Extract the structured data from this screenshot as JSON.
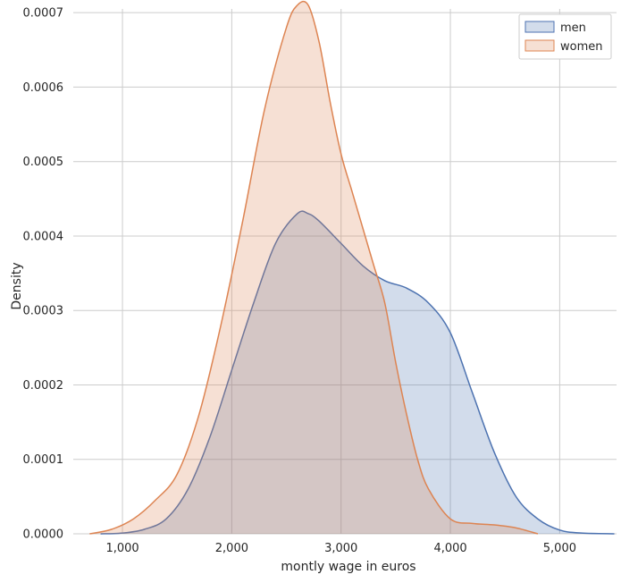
{
  "chart_data": {
    "type": "area",
    "xlabel": "montly wage in euros",
    "ylabel": "Density",
    "xlim": [
      550,
      5520
    ],
    "ylim": [
      0,
      0.000705
    ],
    "grid": true,
    "legend_position": "top-right",
    "x_ticks": [
      1000,
      2000,
      3000,
      4000,
      5000
    ],
    "x_tick_labels": [
      "1,000",
      "2,000",
      "3,000",
      "4,000",
      "5,000"
    ],
    "y_ticks": [
      0.0,
      0.0001,
      0.0002,
      0.0003,
      0.0004,
      0.0005,
      0.0006,
      0.0007
    ],
    "y_tick_labels": [
      "0.0000",
      "0.0001",
      "0.0002",
      "0.0003",
      "0.0004",
      "0.0005",
      "0.0006",
      "0.0007"
    ],
    "series": [
      {
        "name": "men",
        "line_color": "#4c72b0",
        "fill_color": "#4c72b0",
        "fill_opacity": 0.25,
        "x": [
          800,
          1000,
          1200,
          1400,
          1600,
          1800,
          2000,
          2200,
          2400,
          2600,
          2700,
          2800,
          3000,
          3200,
          3400,
          3600,
          3800,
          4000,
          4200,
          4400,
          4600,
          4800,
          5000,
          5200,
          5500
        ],
        "y": [
          0.0,
          1e-06,
          6e-06,
          2e-05,
          6e-05,
          0.00013,
          0.00022,
          0.00031,
          0.00039,
          0.00043,
          0.00043,
          0.00042,
          0.00039,
          0.00036,
          0.00034,
          0.00033,
          0.00031,
          0.00027,
          0.00019,
          0.00011,
          5e-05,
          2e-05,
          5e-06,
          1e-06,
          0.0
        ]
      },
      {
        "name": "women",
        "line_color": "#dd8452",
        "fill_color": "#dd8452",
        "fill_opacity": 0.25,
        "x": [
          700,
          900,
          1100,
          1300,
          1500,
          1700,
          1900,
          2100,
          2300,
          2500,
          2600,
          2700,
          2800,
          2900,
          3000,
          3100,
          3200,
          3300,
          3400,
          3500,
          3600,
          3700,
          3800,
          4000,
          4200,
          4400,
          4600,
          4800
        ],
        "y": [
          0.0,
          6e-06,
          2e-05,
          4.5e-05,
          8e-05,
          0.00016,
          0.00028,
          0.00042,
          0.00057,
          0.00068,
          0.00071,
          0.00071,
          0.00066,
          0.00058,
          0.00051,
          0.00046,
          0.00041,
          0.00036,
          0.00031,
          0.00023,
          0.00016,
          0.0001,
          6e-05,
          2e-05,
          1.4e-05,
          1.2e-05,
          8e-06,
          0.0
        ]
      }
    ]
  }
}
